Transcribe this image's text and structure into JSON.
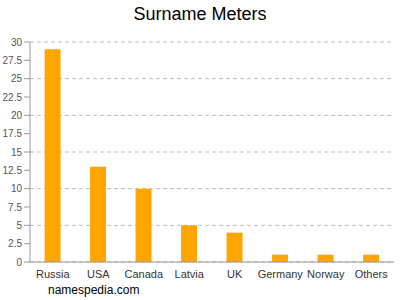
{
  "chart_data": {
    "type": "bar",
    "title": "Surname Meters",
    "categories": [
      "Russia",
      "USA",
      "Canada",
      "Latvia",
      "UK",
      "Germany",
      "Norway",
      "Others"
    ],
    "values": [
      29,
      13,
      10,
      5,
      4,
      1,
      1,
      1
    ],
    "color": "#ffa500",
    "ylim": [
      0,
      30
    ],
    "yticks": [
      0,
      2.5,
      5,
      7.5,
      10,
      12.5,
      15,
      17.5,
      20,
      22.5,
      25,
      27.5,
      30
    ],
    "grid": true,
    "annotations": [
      "namespedia.com"
    ]
  }
}
